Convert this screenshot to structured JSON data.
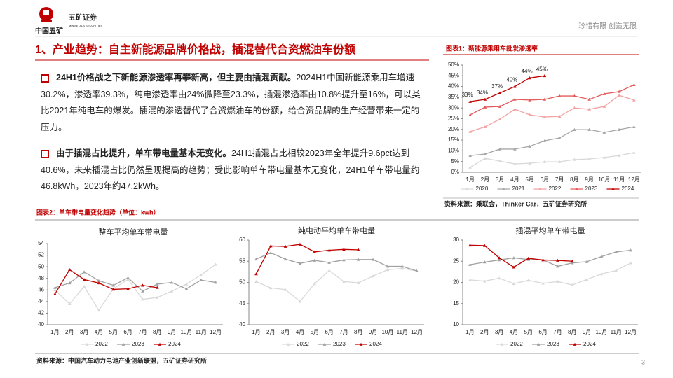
{
  "header": {
    "company": "中国五矿",
    "brand": "五矿证券",
    "brand_en": "MINMETALS SECURITIES",
    "slogan": "珍惜有限 创造无限"
  },
  "title": "1、产业趋势：自主新能源品牌价格战，插混替代合资燃油车份额",
  "bullets": [
    {
      "lead": "24H1价格战之下新能源渗透率再攀新高，但主要由插混贡献。",
      "body": "2024H1中国新能源乘用车增速30.2%，渗透率39.3%，纯电渗透率由24%微降至23.3%，插混渗透率由10.8%提升至16%，可以类比2021年纯电车的爆发。插混的渗透替代了合资燃油车的份额，给合资品牌的生产经营带来一定的压力。"
    },
    {
      "lead": "由于插混占比提升，单车带电量基本无变化。",
      "body": "24H1插混占比相较2023年全年提升9.6pct达到40.6%，未来插混占比仍然呈现提高的趋势；受此影响单车带电量基本无变化，24H1单车带电量约46.8kWh，2023年约47.2kWh。"
    }
  ],
  "figure2_caption": "图表2：单车带电量变化趋势（单位：kwh）",
  "footer": {
    "source": "资料来源：中国汽车动力电池产业创新联盟，五矿证券研究所",
    "page": "3"
  },
  "chart_data": [
    {
      "type": "line",
      "title": "图表1：新能源乘用车批发渗透率",
      "source": "资料来源：乘联会，Thinker Car，五矿证券研究所",
      "categories": [
        "1月",
        "2月",
        "3月",
        "4月",
        "5月",
        "6月",
        "7月",
        "8月",
        "9月",
        "10月",
        "11月",
        "12月"
      ],
      "ylim": [
        0,
        50
      ],
      "yticks": [
        {
          "value": 0,
          "label": "0%"
        },
        {
          "value": 5,
          "label": "5%"
        },
        {
          "value": 10,
          "label": "10%"
        },
        {
          "value": 15,
          "label": "15%"
        },
        {
          "value": 20,
          "label": "20%"
        },
        {
          "value": 25,
          "label": "25%"
        },
        {
          "value": 30,
          "label": "30%"
        },
        {
          "value": 35,
          "label": "35%"
        },
        {
          "value": 40,
          "label": "40%"
        },
        {
          "value": 45,
          "label": "45%"
        },
        {
          "value": 50,
          "label": "50%"
        }
      ],
      "series": [
        {
          "name": "2020",
          "color": "#d9d9d9",
          "values": [
            2.3,
            6.5,
            5.2,
            3.9,
            4.2,
            4.9,
            4.9,
            5.9,
            6.2,
            6.9,
            7.8,
            9.2
          ]
        },
        {
          "name": "2021",
          "color": "#a6a6a6",
          "values": [
            7.8,
            8.5,
            10.8,
            10.8,
            12.1,
            14.7,
            16,
            19.9,
            19.9,
            18.6,
            19.9,
            21.2
          ]
        },
        {
          "name": "2022",
          "color": "#f4a3a3",
          "values": [
            19,
            21.2,
            24.8,
            29.4,
            26.8,
            25.8,
            26.1,
            30,
            29.4,
            30.7,
            35.9,
            33.7
          ]
        },
        {
          "name": "2023",
          "color": "#e35a5a",
          "values": [
            26.8,
            30.4,
            30.7,
            34,
            33.7,
            34,
            35.6,
            35.6,
            34,
            36.6,
            37.6,
            40.8
          ]
        },
        {
          "name": "2024",
          "color": "#c00000",
          "values": [
            33,
            34,
            37,
            40,
            44,
            45,
            null,
            null,
            null,
            null,
            null,
            null
          ],
          "value_labels": [
            "33%",
            "34%",
            "37%",
            "40%",
            "44%",
            "45%",
            null,
            null,
            null,
            null,
            null,
            null
          ]
        }
      ]
    },
    {
      "type": "line",
      "title": "整车平均单车带电量",
      "categories": [
        "1月",
        "2月",
        "3月",
        "4月",
        "5月",
        "6月",
        "7月",
        "8月",
        "9月",
        "10月",
        "11月",
        "12月"
      ],
      "ylim": [
        40,
        54
      ],
      "yticks": [
        40,
        42,
        44,
        46,
        48,
        50,
        52,
        54
      ],
      "series": [
        {
          "name": "2022",
          "color": "#d9d9d9",
          "values": [
            46,
            43.6,
            46.6,
            42.5,
            46.2,
            47.8,
            44.4,
            44.7,
            45.8,
            47,
            48.6,
            50.4
          ]
        },
        {
          "name": "2023",
          "color": "#a0a0a0",
          "values": [
            46.4,
            47.2,
            49.1,
            47.6,
            46.8,
            48.1,
            45.8,
            47,
            47.3,
            46.2,
            47.7,
            47.3
          ]
        },
        {
          "name": "2024",
          "color": "#c00000",
          "values": [
            45.3,
            49.5,
            47.8,
            47.2,
            46.1,
            46.2,
            46.8,
            46.4,
            null,
            null,
            null,
            null
          ]
        }
      ]
    },
    {
      "type": "line",
      "title": "纯电动平均单车带电量",
      "categories": [
        "1月",
        "2月",
        "3月",
        "4月",
        "5月",
        "6月",
        "7月",
        "8月",
        "9月",
        "10月",
        "11月",
        "12月"
      ],
      "ylim": [
        40,
        60
      ],
      "yticks": [
        40,
        45,
        50,
        55,
        60
      ],
      "series": [
        {
          "name": "2022",
          "color": "#d9d9d9",
          "values": [
            50.2,
            48.7,
            48.3,
            45.5,
            49.7,
            52.8,
            50.2,
            49.9,
            51.5,
            53,
            53.3,
            52.7
          ]
        },
        {
          "name": "2023",
          "color": "#a0a0a0",
          "values": [
            55.5,
            57,
            55.5,
            54.5,
            55.2,
            54.7,
            55.3,
            55.4,
            55.4,
            53.8,
            53.8,
            52.7
          ]
        },
        {
          "name": "2024",
          "color": "#c00000",
          "values": [
            52,
            58.6,
            58.5,
            59,
            57.2,
            57.6,
            57.8,
            57.7,
            null,
            null,
            null,
            null
          ]
        }
      ]
    },
    {
      "type": "line",
      "title": "插混平均单车带电量",
      "categories": [
        "1月",
        "2月",
        "3月",
        "4月",
        "5月",
        "6月",
        "7月",
        "8月",
        "9月",
        "10月",
        "11月",
        "12月"
      ],
      "ylim": [
        10,
        30
      ],
      "yticks": [
        10,
        15,
        20,
        25,
        30
      ],
      "series": [
        {
          "name": "2022",
          "color": "#d9d9d9",
          "values": [
            20.6,
            20.3,
            21,
            19.7,
            20.5,
            19.8,
            20.2,
            19.4,
            20.7,
            22,
            22.8,
            24.6
          ]
        },
        {
          "name": "2023",
          "color": "#a0a0a0",
          "values": [
            24.2,
            24.8,
            25.3,
            25.8,
            25.4,
            25.3,
            23.8,
            24.6,
            24.9,
            26.1,
            27.2,
            27.6
          ]
        },
        {
          "name": "2024",
          "color": "#c00000",
          "values": [
            28.8,
            28.7,
            25.8,
            23.6,
            25.7,
            25.3,
            25.2,
            25,
            null,
            null,
            null,
            null
          ]
        }
      ]
    }
  ]
}
